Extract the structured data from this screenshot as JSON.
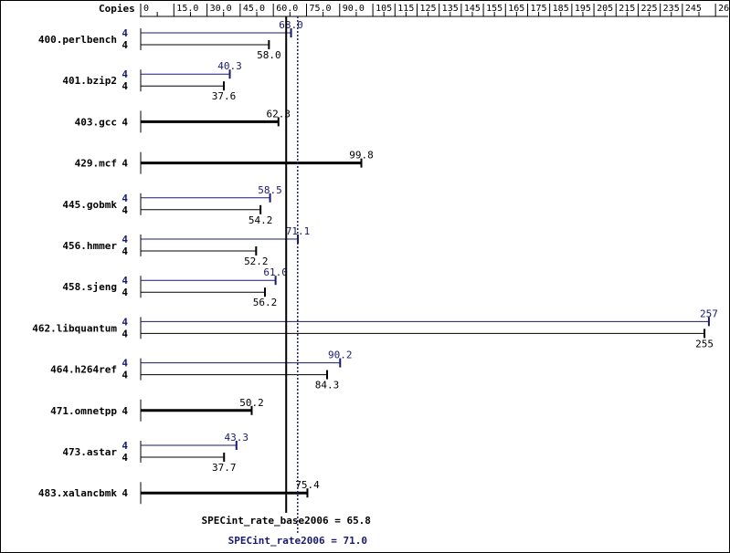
{
  "chart_data": {
    "type": "bar",
    "orientation": "horizontal",
    "title": "",
    "xlabel": "",
    "ylabel": "",
    "copies_header": "Copies",
    "xlim": [
      0,
      262
    ],
    "ticks": [
      0,
      15,
      30,
      45,
      60,
      75,
      90,
      105,
      115,
      125,
      135,
      145,
      155,
      165,
      175,
      185,
      195,
      205,
      215,
      225,
      235,
      245,
      260
    ],
    "tick_labels": [
      "0",
      "15.0",
      "30.0",
      "45.0",
      "60.0",
      "75.0",
      "90.0",
      "105",
      "115",
      "125",
      "135",
      "145",
      "155",
      "165",
      "175",
      "185",
      "195",
      "205",
      "215",
      "225",
      "235",
      "245",
      "260"
    ],
    "colors": {
      "base": "#000000",
      "peak": "#191970"
    },
    "series_names": [
      "SPECint_rate_base2006",
      "SPECint_rate2006"
    ],
    "benchmarks": [
      {
        "name": "400.perlbench",
        "peak": 68.0,
        "peak_label": "68.0",
        "peak_copies": "4",
        "base": 58.0,
        "base_label": "58.0",
        "base_copies": "4"
      },
      {
        "name": "401.bzip2",
        "peak": 40.3,
        "peak_label": "40.3",
        "peak_copies": "4",
        "base": 37.6,
        "base_label": "37.6",
        "base_copies": "4"
      },
      {
        "name": "403.gcc",
        "base": 62.3,
        "base_label": "62.3",
        "base_copies": "4"
      },
      {
        "name": "429.mcf",
        "base": 99.8,
        "base_label": "99.8",
        "base_copies": "4"
      },
      {
        "name": "445.gobmk",
        "peak": 58.5,
        "peak_label": "58.5",
        "peak_copies": "4",
        "base": 54.2,
        "base_label": "54.2",
        "base_copies": "4"
      },
      {
        "name": "456.hmmer",
        "peak": 71.1,
        "peak_label": "71.1",
        "peak_copies": "4",
        "base": 52.2,
        "base_label": "52.2",
        "base_copies": "4"
      },
      {
        "name": "458.sjeng",
        "peak": 61.0,
        "peak_label": "61.0",
        "peak_copies": "4",
        "base": 56.2,
        "base_label": "56.2",
        "base_copies": "4"
      },
      {
        "name": "462.libquantum",
        "peak": 257,
        "peak_label": "257",
        "peak_copies": "4",
        "base": 255,
        "base_label": "255",
        "base_copies": "4"
      },
      {
        "name": "464.h264ref",
        "peak": 90.2,
        "peak_label": "90.2",
        "peak_copies": "4",
        "base": 84.3,
        "base_label": "84.3",
        "base_copies": "4"
      },
      {
        "name": "471.omnetpp",
        "base": 50.2,
        "base_label": "50.2",
        "base_copies": "4"
      },
      {
        "name": "473.astar",
        "peak": 43.3,
        "peak_label": "43.3",
        "peak_copies": "4",
        "base": 37.7,
        "base_label": "37.7",
        "base_copies": "4"
      },
      {
        "name": "483.xalancbmk",
        "base": 75.4,
        "base_label": "75.4",
        "base_copies": "4"
      }
    ],
    "summary": {
      "base_value": 65.8,
      "base_text": "SPECint_rate_base2006 = 65.8",
      "peak_value": 71.0,
      "peak_text": "SPECint_rate2006 = 71.0"
    }
  }
}
